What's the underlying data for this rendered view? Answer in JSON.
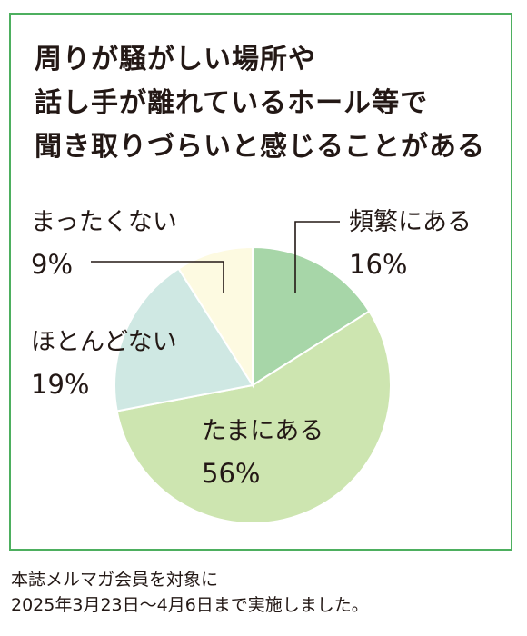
{
  "chart_data": {
    "type": "pie",
    "title_lines": [
      "周りが騒がしい場所や",
      "話し手が離れているホール等で",
      "聞き取りづらいと感じることがある"
    ],
    "unit": "%",
    "slices": [
      {
        "label": "頻繁にある",
        "value": 16,
        "color": "#a7d6a8"
      },
      {
        "label": "たまにある",
        "value": 56,
        "color": "#cde5b0"
      },
      {
        "label": "ほとんどない",
        "value": 19,
        "color": "#cfe8e3"
      },
      {
        "label": "まったくない",
        "value": 9,
        "color": "#fdfae1"
      }
    ],
    "start_angle_deg": 0,
    "direction": "clockwise",
    "slice_stroke": "#ffffff",
    "leader_color": "#231815"
  },
  "footnote": {
    "lines": [
      "本誌メルマガ会員を対象に",
      "2025年3月23日〜4月6日まで実施しました。"
    ]
  },
  "colors": {
    "frame_border": "#4daf5f",
    "text": "#231815"
  }
}
